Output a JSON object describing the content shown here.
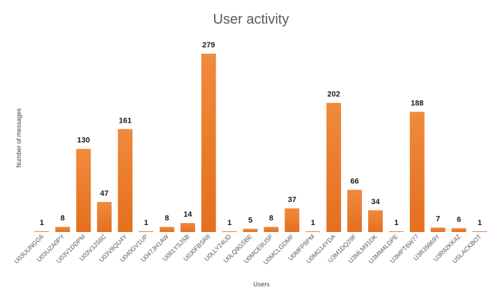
{
  "chart_data": {
    "type": "bar",
    "title": "User activity",
    "xlabel": "Users",
    "ylabel": "Number of messages",
    "categories": [
      "U03UUNGG6",
      "U03UZA0PY",
      "U03V1DDPM",
      "U03V3JS6C",
      "U03V8QU4Y",
      "U040GV1UP",
      "U047JH1AW",
      "U081YSJSB",
      "U0J0FBSR8",
      "U0LLY24UD",
      "U0LQ9GSBE",
      "U0MCE8USF",
      "U0MCLGDMF",
      "U0MFP8PM",
      "U0MG14YDA",
      "U3M1DQ29F",
      "U3MLM91DK",
      "U3MM4LDPE",
      "U3MPT6W77",
      "U3R39869Y",
      "U3R82KK4Z",
      "USLACKBOT"
    ],
    "values": [
      1,
      8,
      130,
      47,
      161,
      1,
      8,
      14,
      279,
      1,
      5,
      8,
      37,
      1,
      202,
      66,
      34,
      1,
      188,
      7,
      6,
      1
    ],
    "ylim": [
      0,
      279
    ],
    "grid": false,
    "legend": "none",
    "bar_color": "#ED7D31"
  }
}
